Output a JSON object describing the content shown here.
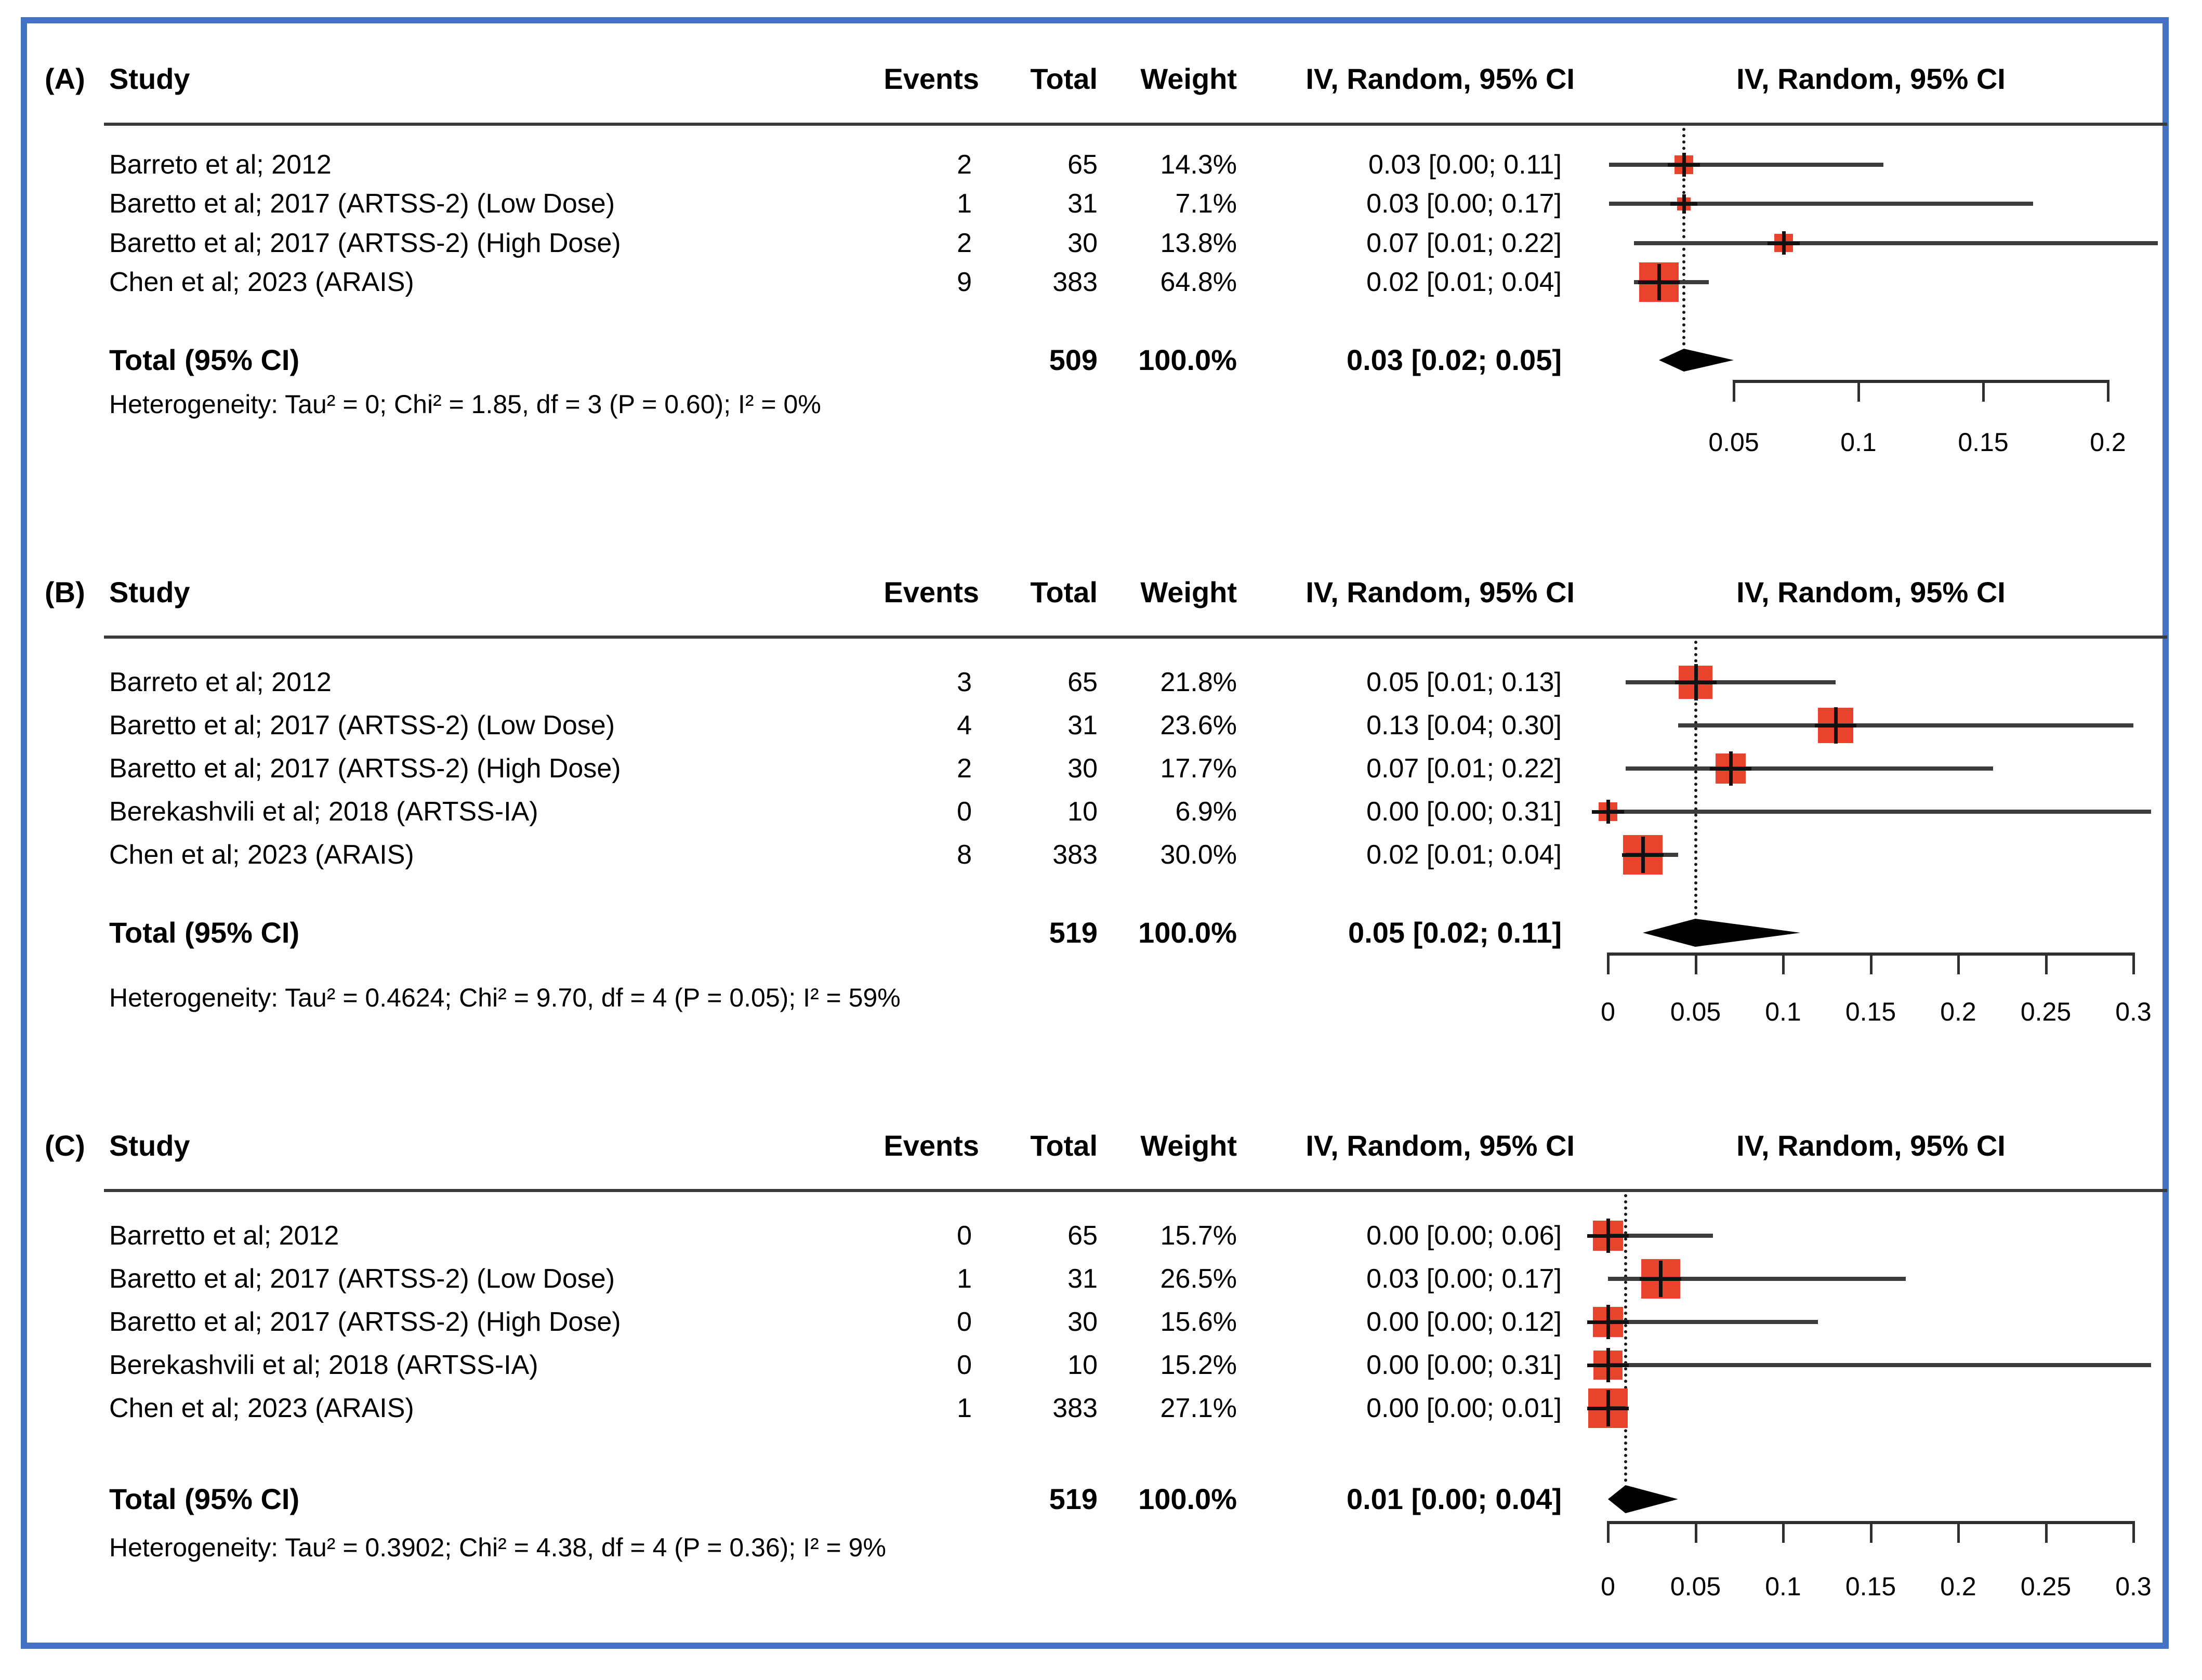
{
  "figure": {
    "border_color": "#4472C4",
    "background": "#FFFFFF",
    "marker_color": "#E8432C",
    "line_color": "#3C3C3C",
    "diamond_color": "#000000"
  },
  "chart_data": [
    {
      "type": "forest",
      "panel_label": "(A)",
      "cols": {
        "study": "Study",
        "events": "Events",
        "total": "Total",
        "weight": "Weight",
        "ci": "IV, Random, 95% CI",
        "plot": "IV, Random, 95% CI"
      },
      "studies": [
        {
          "name": "Barreto et al; 2012",
          "events": "2",
          "total": "65",
          "weight": "14.3%",
          "weight_value": 14.3,
          "estimate": 0.03,
          "ci_low": 0.0,
          "ci_high": 0.11,
          "ci_text": "0.03 [0.00; 0.11]"
        },
        {
          "name": "Baretto et al; 2017 (ARTSS-2) (Low Dose)",
          "events": "1",
          "total": "31",
          "weight": "7.1%",
          "weight_value": 7.1,
          "estimate": 0.03,
          "ci_low": 0.0,
          "ci_high": 0.17,
          "ci_text": "0.03 [0.00; 0.17]"
        },
        {
          "name": "Baretto et al; 2017 (ARTSS-2) (High Dose)",
          "events": "2",
          "total": "30",
          "weight": "13.8%",
          "weight_value": 13.8,
          "estimate": 0.07,
          "ci_low": 0.01,
          "ci_high": 0.22,
          "ci_text": "0.07 [0.01; 0.22]"
        },
        {
          "name": "Chen et al; 2023 (ARAIS)",
          "events": "9",
          "total": "383",
          "weight": "64.8%",
          "weight_value": 64.8,
          "estimate": 0.02,
          "ci_low": 0.01,
          "ci_high": 0.04,
          "ci_text": "0.02 [0.01; 0.04]"
        }
      ],
      "total_row": {
        "label": "Total (95% CI)",
        "total": "509",
        "weight": "100.0%",
        "estimate": 0.03,
        "ci_low": 0.02,
        "ci_high": 0.05,
        "ci_text": "0.03 [0.02; 0.05]"
      },
      "heterogeneity": "Heterogeneity: Tau² = 0; Chi² = 1.85, df = 3 (P = 0.60); I² = 0%",
      "axis_ticks": [
        0.05,
        0.1,
        0.15,
        0.2
      ],
      "axis_tick_labels": [
        "0.05",
        "0.1",
        "0.15",
        "0.2"
      ],
      "axis_range": [
        0.05,
        0.2
      ],
      "pooled": 0.03
    },
    {
      "type": "forest",
      "panel_label": "(B)",
      "cols": {
        "study": "Study",
        "events": "Events",
        "total": "Total",
        "weight": "Weight",
        "ci": "IV, Random, 95% CI",
        "plot": "IV, Random, 95% CI"
      },
      "studies": [
        {
          "name": "Barreto et al; 2012",
          "events": "3",
          "total": "65",
          "weight": "21.8%",
          "weight_value": 21.8,
          "estimate": 0.05,
          "ci_low": 0.01,
          "ci_high": 0.13,
          "ci_text": "0.05 [0.01; 0.13]"
        },
        {
          "name": "Baretto et al; 2017 (ARTSS-2) (Low Dose)",
          "events": "4",
          "total": "31",
          "weight": "23.6%",
          "weight_value": 23.6,
          "estimate": 0.13,
          "ci_low": 0.04,
          "ci_high": 0.3,
          "ci_text": "0.13 [0.04; 0.30]"
        },
        {
          "name": "Baretto et al; 2017 (ARTSS-2) (High Dose)",
          "events": "2",
          "total": "30",
          "weight": "17.7%",
          "weight_value": 17.7,
          "estimate": 0.07,
          "ci_low": 0.01,
          "ci_high": 0.22,
          "ci_text": "0.07 [0.01; 0.22]"
        },
        {
          "name": "Berekashvili et al; 2018 (ARTSS-IA)",
          "events": "0",
          "total": "10",
          "weight": "6.9%",
          "weight_value": 6.9,
          "estimate": 0.0,
          "ci_low": 0.0,
          "ci_high": 0.31,
          "ci_text": "0.00 [0.00; 0.31]"
        },
        {
          "name": "Chen et al; 2023 (ARAIS)",
          "events": "8",
          "total": "383",
          "weight": "30.0%",
          "weight_value": 30.0,
          "estimate": 0.02,
          "ci_low": 0.01,
          "ci_high": 0.04,
          "ci_text": "0.02 [0.01; 0.04]"
        }
      ],
      "total_row": {
        "label": "Total (95% CI)",
        "total": "519",
        "weight": "100.0%",
        "estimate": 0.05,
        "ci_low": 0.02,
        "ci_high": 0.11,
        "ci_text": "0.05 [0.02; 0.11]"
      },
      "heterogeneity": "Heterogeneity: Tau² = 0.4624; Chi² = 9.70, df = 4 (P = 0.05); I² = 59%",
      "axis_ticks": [
        0,
        0.05,
        0.1,
        0.15,
        0.2,
        0.25,
        0.3
      ],
      "axis_tick_labels": [
        "0",
        "0.05",
        "0.1",
        "0.15",
        "0.2",
        "0.25",
        "0.3"
      ],
      "axis_range": [
        0,
        0.3
      ],
      "pooled": 0.05
    },
    {
      "type": "forest",
      "panel_label": "(C)",
      "cols": {
        "study": "Study",
        "events": "Events",
        "total": "Total",
        "weight": "Weight",
        "ci": "IV, Random, 95% CI",
        "plot": "IV, Random, 95% CI"
      },
      "studies": [
        {
          "name": "Barretto et al; 2012",
          "events": "0",
          "total": "65",
          "weight": "15.7%",
          "weight_value": 15.7,
          "estimate": 0.0,
          "ci_low": 0.0,
          "ci_high": 0.06,
          "ci_text": "0.00 [0.00; 0.06]"
        },
        {
          "name": "Baretto et al; 2017 (ARTSS-2) (Low Dose)",
          "events": "1",
          "total": "31",
          "weight": "26.5%",
          "weight_value": 26.5,
          "estimate": 0.03,
          "ci_low": 0.0,
          "ci_high": 0.17,
          "ci_text": "0.03 [0.00; 0.17]"
        },
        {
          "name": "Baretto et al; 2017 (ARTSS-2) (High Dose)",
          "events": "0",
          "total": "30",
          "weight": "15.6%",
          "weight_value": 15.6,
          "estimate": 0.0,
          "ci_low": 0.0,
          "ci_high": 0.12,
          "ci_text": "0.00 [0.00; 0.12]"
        },
        {
          "name": "Berekashvili et al; 2018 (ARTSS-IA)",
          "events": "0",
          "total": "10",
          "weight": "15.2%",
          "weight_value": 15.2,
          "estimate": 0.0,
          "ci_low": 0.0,
          "ci_high": 0.31,
          "ci_text": "0.00 [0.00; 0.31]"
        },
        {
          "name": "Chen et al; 2023 (ARAIS)",
          "events": "1",
          "total": "383",
          "weight": "27.1%",
          "weight_value": 27.1,
          "estimate": 0.0,
          "ci_low": 0.0,
          "ci_high": 0.01,
          "ci_text": "0.00 [0.00; 0.01]"
        }
      ],
      "total_row": {
        "label": "Total (95% CI)",
        "total": "519",
        "weight": "100.0%",
        "estimate": 0.01,
        "ci_low": 0.0,
        "ci_high": 0.04,
        "ci_text": "0.01 [0.00; 0.04]"
      },
      "heterogeneity": "Heterogeneity: Tau² = 0.3902; Chi² = 4.38, df = 4 (P = 0.36); I² = 9%",
      "axis_ticks": [
        0,
        0.05,
        0.1,
        0.15,
        0.2,
        0.25,
        0.3
      ],
      "axis_tick_labels": [
        "0",
        "0.05",
        "0.1",
        "0.15",
        "0.2",
        "0.25",
        "0.3"
      ],
      "axis_range": [
        0,
        0.3
      ],
      "pooled": 0.01
    }
  ]
}
